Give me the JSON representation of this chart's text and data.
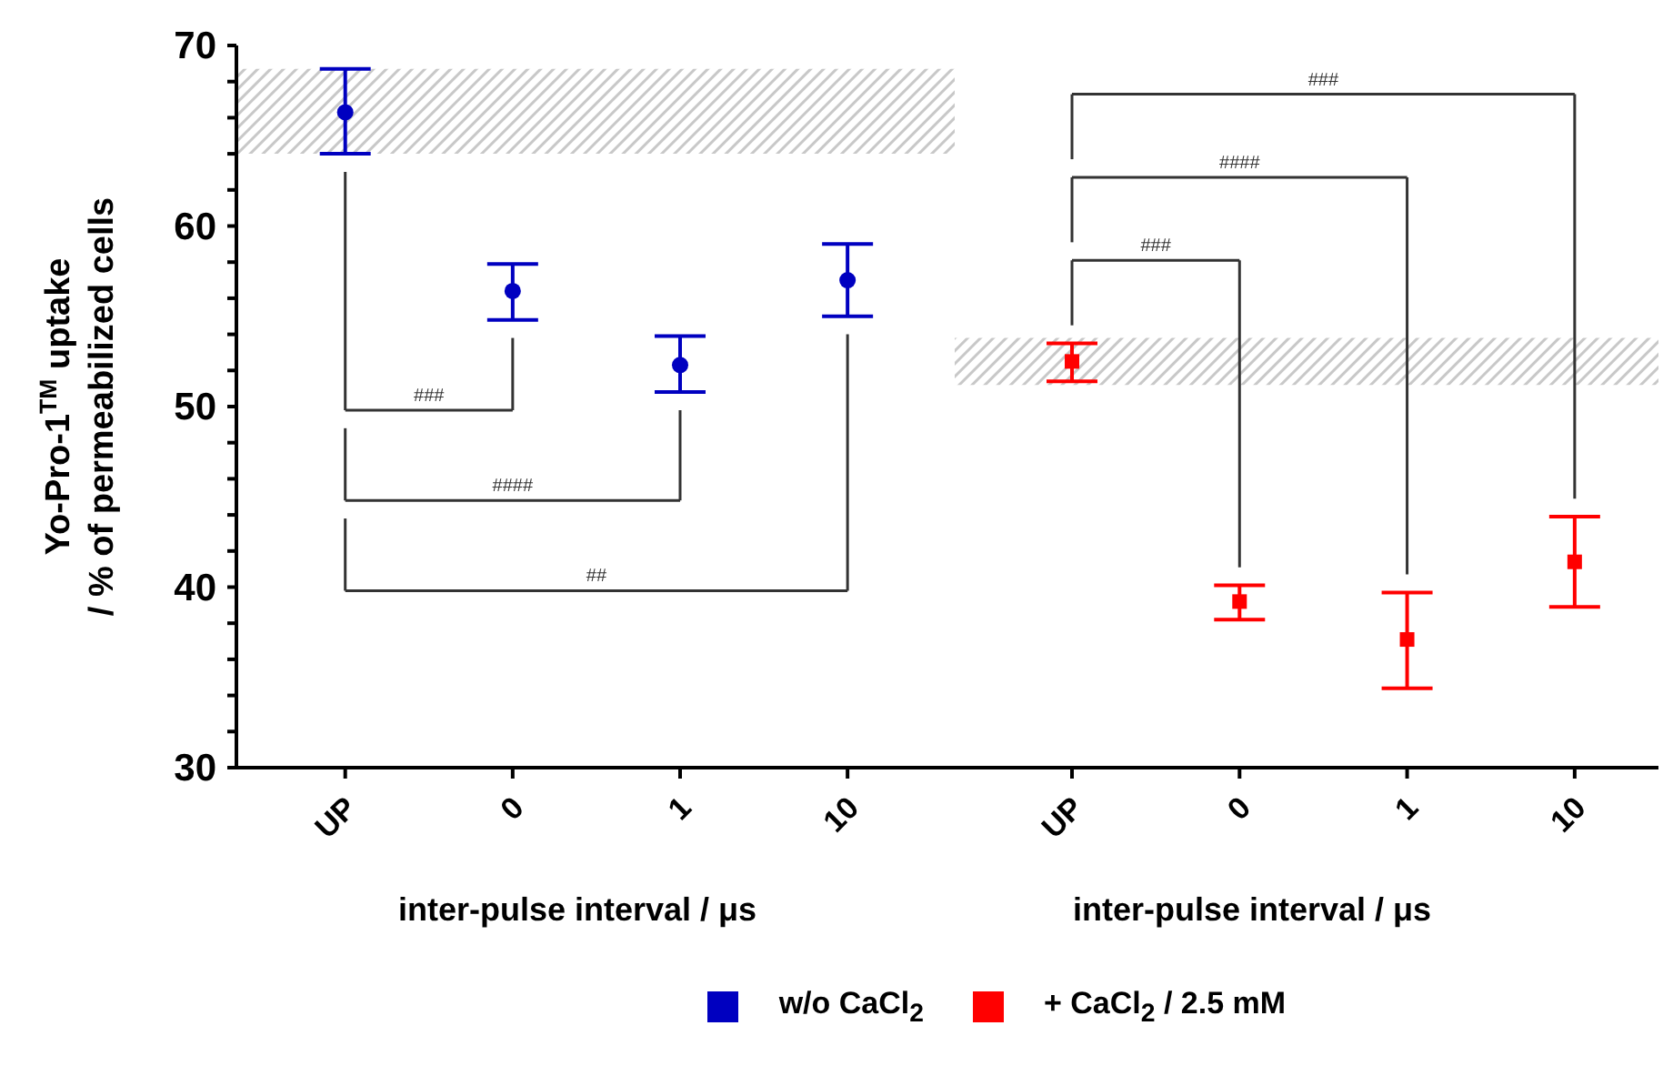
{
  "chart_data": [
    {
      "type": "scatter",
      "ylabel": "Yo-Pro-1$^{TM}$ uptake\n/ % of permeabilized cells",
      "xlabel": "inter-pulse interval / μs",
      "categories": [
        "UP",
        "0",
        "1",
        "10"
      ],
      "series": [
        {
          "name": "w/o CaCl$_{2}$",
          "color": "#0000c0",
          "values": [
            66.3,
            56.4,
            52.3,
            57.0
          ],
          "errors": [
            [
              64.0,
              68.7
            ],
            [
              54.8,
              57.9
            ],
            [
              50.8,
              53.9
            ],
            [
              55.0,
              59.0
            ]
          ]
        }
      ],
      "marker": "circle",
      "ylim": [
        30,
        70
      ],
      "yticks": [
        30,
        {
          "value": 32,
          "label": null
        },
        {
          "value": 34,
          "label": null
        },
        {
          "value": 36,
          "label": null
        },
        {
          "value": 38,
          "label": null
        },
        40,
        {
          "value": 42,
          "label": null
        },
        {
          "value": 44,
          "label": null
        },
        {
          "value": 46,
          "label": null
        },
        {
          "value": 48,
          "label": null
        },
        50,
        {
          "value": 52,
          "label": null
        },
        {
          "value": 54,
          "label": null
        },
        {
          "value": 56,
          "label": null
        },
        {
          "value": 58,
          "label": null
        },
        60,
        {
          "value": 62,
          "label": null
        },
        {
          "value": 64,
          "label": null
        },
        {
          "value": 66,
          "label": null
        },
        {
          "value": 68,
          "label": null
        },
        70
      ],
      "bands": [
        {
          "axis": "y",
          "from": 64.0,
          "to": 68.7,
          "color": "#c8c8c8"
        }
      ],
      "annotations": [
        "###",
        "####",
        "##"
      ],
      "grid": false,
      "legend": "bottom"
    },
    {
      "type": "scatter",
      "xlabel": "inter-pulse interval / μs",
      "categories": [
        "UP",
        "0",
        "1",
        "10"
      ],
      "series": [
        {
          "name": "+ CaCl$_{2}$ / 2.5 mM",
          "color": "#ff0000",
          "values": [
            52.5,
            39.2,
            37.1,
            41.4
          ],
          "errors": [
            [
              51.4,
              53.5
            ],
            [
              38.2,
              40.1
            ],
            [
              34.4,
              39.7
            ],
            [
              38.9,
              43.9
            ]
          ]
        }
      ],
      "marker": "square",
      "ylim": [
        30,
        70
      ],
      "tick_labels": "x",
      "bands": [
        {
          "axis": "y",
          "from": 51.2,
          "to": 53.8,
          "color": "#c8c8c8"
        }
      ],
      "annotations": [
        "###",
        "####",
        "###"
      ],
      "grid": false,
      "legend": "bottom"
    }
  ]
}
